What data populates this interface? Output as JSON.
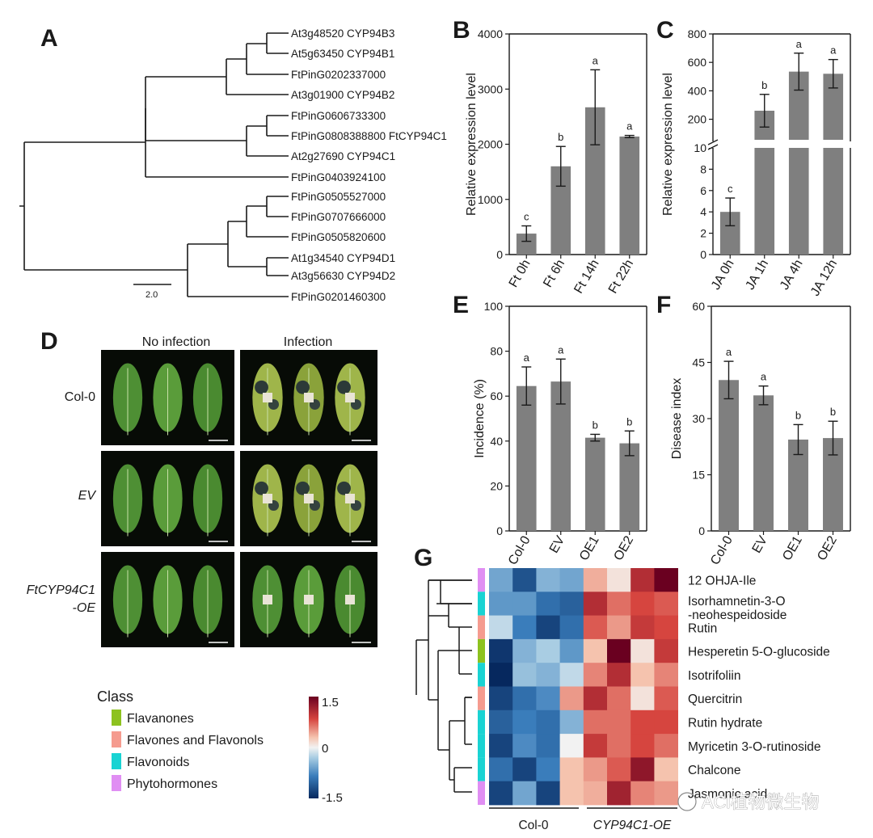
{
  "panels": {
    "A": "A",
    "B": "B",
    "C": "C",
    "D": "D",
    "E": "E",
    "F": "F",
    "G": "G"
  },
  "tree": {
    "scale_label": "2.0",
    "leaves": [
      "At3g48520 CYP94B3",
      "At5g63450 CYP94B1",
      "FtPinG0202337000",
      "At3g01900 CYP94B2",
      "FtPinG0606733300",
      "FtPinG0808388800 FtCYP94C1",
      "At2g27690 CYP94C1",
      "FtPinG0403924100",
      "FtPinG0505527000",
      "FtPinG0707666000",
      "FtPinG0505820600",
      "At1g34540 CYP94D1",
      "At3g56630 CYP94D2",
      "FtPinG0201460300"
    ],
    "highlight_color": "#d2504e"
  },
  "leaf_images": {
    "col_headers": [
      "No infection",
      "Infection"
    ],
    "row_labels": [
      "Col-0",
      "EV",
      "FtCYP94C1\n-OE"
    ],
    "row_label_lines": [
      [
        "Col-0"
      ],
      [
        "EV"
      ],
      [
        "FtCYP94C1",
        "-OE"
      ]
    ]
  },
  "legend": {
    "title": "Class",
    "items": [
      {
        "label": "Flavanones",
        "color": "#8dc21f"
      },
      {
        "label": "Flavones and Flavonols",
        "color": "#f59b8f"
      },
      {
        "label": "Flavonoids",
        "color": "#19d3d3"
      },
      {
        "label": "Phytohormones",
        "color": "#e08ef3"
      }
    ],
    "colorbar_ticks": [
      "1.5",
      "0",
      "-1.5"
    ]
  },
  "heatmap": {
    "group_labels": [
      "Col-0",
      "CYP94C1-OE"
    ],
    "rows": [
      "12 OHJA-Ile",
      "Isorhamnetin-3-O",
      "Rutin",
      "Hesperetin 5-O-glucoside",
      "Isotrifoliin",
      "Quercitrin",
      "Rutin hydrate",
      "Myricetin 3-O-rutinoside",
      "Chalcone",
      "Jasmonic acid"
    ],
    "row2_extra": "-neohespeidoside",
    "row_classes": [
      "#e08ef3",
      "#19d3d3",
      "#f59b8f",
      "#8dc21f",
      "#19d3d3",
      "#f59b8f",
      "#19d3d3",
      "#19d3d3",
      "#19d3d3",
      "#e08ef3"
    ],
    "values": [
      [
        -0.6,
        -1.2,
        -0.5,
        -0.6,
        0.4,
        0.1,
        1.1,
        1.5
      ],
      [
        -0.7,
        -0.7,
        -1.0,
        -1.1,
        1.1,
        0.7,
        0.9,
        0.8
      ],
      [
        -0.2,
        -0.9,
        -1.3,
        -1.0,
        0.8,
        0.5,
        1.0,
        0.9
      ],
      [
        -1.4,
        -0.5,
        -0.3,
        -0.7,
        0.3,
        1.5,
        0.1,
        1.0
      ],
      [
        -1.5,
        -0.4,
        -0.5,
        -0.2,
        0.6,
        1.1,
        0.3,
        0.6
      ],
      [
        -1.3,
        -1.0,
        -0.8,
        0.5,
        1.1,
        0.7,
        0.1,
        0.8
      ],
      [
        -1.1,
        -0.9,
        -1.0,
        -0.5,
        0.7,
        0.7,
        0.9,
        0.9
      ],
      [
        -1.3,
        -0.8,
        -1.0,
        0.0,
        1.0,
        0.7,
        0.9,
        0.7
      ],
      [
        -1.0,
        -1.3,
        -0.9,
        0.3,
        0.5,
        0.8,
        1.3,
        0.3
      ],
      [
        -1.3,
        -0.6,
        -1.3,
        0.3,
        0.4,
        1.2,
        0.6,
        0.5
      ]
    ]
  },
  "watermark": "ACl植物微生物",
  "chart_data": [
    {
      "panel": "B",
      "type": "bar",
      "categories": [
        "Ft 0h",
        "Ft 6h",
        "Ft 14h",
        "Ft 22h"
      ],
      "values": [
        380,
        1600,
        2670,
        2140
      ],
      "errors": [
        140,
        360,
        680,
        20
      ],
      "letters": [
        "c",
        "b",
        "a",
        "a"
      ],
      "ylabel": "Relative expression level",
      "ylim": [
        0,
        4000
      ],
      "yticks": [
        "0",
        "1000",
        "2000",
        "3000",
        "4000"
      ]
    },
    {
      "panel": "C",
      "type": "bar",
      "categories": [
        "JA 0h",
        "JA 1h",
        "JA 4h",
        "JA 12h"
      ],
      "values": [
        4,
        260,
        535,
        520
      ],
      "errors": [
        1.3,
        115,
        130,
        100
      ],
      "letters": [
        "c",
        "b",
        "a",
        "a"
      ],
      "ylabel": "Relative expression level",
      "broken_axis": {
        "lower": [
          0,
          10
        ],
        "upper": [
          10,
          800
        ]
      },
      "yticks": [
        "0",
        "2",
        "4",
        "6",
        "8",
        "10",
        "200",
        "400",
        "600",
        "800"
      ]
    },
    {
      "panel": "E",
      "type": "bar",
      "categories": [
        "Col-0",
        "EV",
        "OE1",
        "OE2"
      ],
      "values": [
        64.5,
        66.5,
        41.5,
        39
      ],
      "errors": [
        8.5,
        10,
        1.5,
        5.5
      ],
      "letters": [
        "a",
        "a",
        "b",
        "b"
      ],
      "ylabel": "Incidence (%)",
      "ylim": [
        0,
        100
      ],
      "yticks": [
        "0",
        "20",
        "40",
        "60",
        "80",
        "100"
      ]
    },
    {
      "panel": "F",
      "type": "bar",
      "categories": [
        "Col-0",
        "EV",
        "OE1",
        "OE2"
      ],
      "values": [
        40.3,
        36.2,
        24.4,
        24.8
      ],
      "errors": [
        5,
        2.5,
        4,
        4.5
      ],
      "letters": [
        "a",
        "a",
        "b",
        "b"
      ],
      "ylabel": "Disease index",
      "ylim": [
        0,
        60
      ],
      "yticks": [
        "0",
        "15",
        "30",
        "45",
        "60"
      ]
    }
  ]
}
